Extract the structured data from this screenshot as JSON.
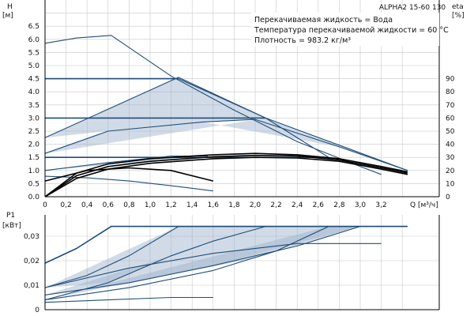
{
  "chart_data": [
    {
      "type": "line",
      "title": "ALPHA2 15-60 130",
      "ylabel": "H",
      "ylabel_unit": "[м]",
      "ylabel_right": "eta",
      "ylabel_right_unit": "[%]",
      "xlabel": "Q [м³/ч]",
      "xlim": [
        0,
        3.6
      ],
      "ylim": [
        0,
        7
      ],
      "ylim_right": [
        0,
        100
      ],
      "x_ticks": [
        "0",
        "0,2",
        "0,4",
        "0,6",
        "0,8",
        "1,0",
        "1,2",
        "1,4",
        "1,6",
        "1,8",
        "2,0",
        "2,2",
        "2,4",
        "2,6",
        "2,8",
        "3,0",
        "3,2"
      ],
      "y_ticks": [
        "0.0",
        "0.5",
        "1.0",
        "1.5",
        "2.0",
        "2.5",
        "3.0",
        "3.5",
        "4.0",
        "4.5",
        "5.0",
        "5.5",
        "6.0",
        "6.5"
      ],
      "y_right_ticks": [
        "0",
        "10",
        "20",
        "30",
        "40",
        "50",
        "60",
        "70",
        "80",
        "90"
      ],
      "grid": true,
      "info_lines": [
        "Перекачиваемая жидкость = Вода",
        "Температура перекачиваемой жидкости = 60 °C",
        "Плотность = 983.2 кг/м³"
      ],
      "series": [
        {
          "role": "max-curve",
          "x": [
            0,
            0.3,
            0.63,
            1.2,
            1.8,
            2.4,
            3.0,
            3.2
          ],
          "y": [
            5.85,
            6.05,
            6.15,
            4.6,
            3.3,
            2.1,
            1.15,
            0.85
          ]
        },
        {
          "role": "prop-pressure-3",
          "x": [
            0,
            1.27,
            2.1,
            3.45
          ],
          "y": [
            2.25,
            4.55,
            3.0,
            1.0
          ]
        },
        {
          "role": "prop-pressure-2",
          "x": [
            0,
            0.6,
            1.5,
            2.0,
            2.8,
            3.45
          ],
          "y": [
            1.65,
            2.5,
            2.85,
            2.95,
            1.9,
            1.0
          ]
        },
        {
          "role": "prop-pressure-1",
          "x": [
            0,
            0.6,
            1.2,
            1.55
          ],
          "y": [
            1.0,
            1.3,
            1.55,
            1.55
          ]
        },
        {
          "role": "const-pressure",
          "x": [
            0,
            0.63,
            1.27,
            2.1,
            2.7
          ],
          "y": [
            4.5,
            4.5,
            4.5,
            3.0,
            1.5
          ]
        },
        {
          "role": "min-curve",
          "x": [
            0,
            0.4,
            0.8,
            1.2,
            1.6
          ],
          "y": [
            0.78,
            0.72,
            0.6,
            0.42,
            0.22
          ]
        },
        {
          "role": "efficiency",
          "axis": "right",
          "x": [
            0,
            0.3,
            0.6,
            1.0,
            1.6,
            2.0,
            2.4,
            2.8,
            3.2,
            3.45
          ],
          "y": [
            0,
            18,
            25,
            29,
            32,
            33,
            32,
            29,
            23,
            19
          ]
        },
        {
          "role": "efficiency",
          "axis": "right",
          "x": [
            0,
            0.3,
            0.6,
            1.0,
            1.6,
            2.0,
            2.4,
            2.8,
            3.2,
            3.45
          ],
          "y": [
            0,
            16,
            23,
            27,
            30.5,
            31.5,
            31,
            28,
            22,
            18
          ]
        },
        {
          "role": "efficiency",
          "axis": "right",
          "x": [
            0,
            0.3,
            0.6,
            1.0,
            1.6,
            2.0,
            2.4,
            2.8,
            3.2,
            3.45
          ],
          "y": [
            0,
            14,
            21,
            25.5,
            29,
            30,
            29.5,
            27,
            21,
            17
          ]
        },
        {
          "role": "efficiency",
          "axis": "right",
          "x": [
            0,
            0.4,
            0.8,
            1.2,
            1.6
          ],
          "y": [
            12,
            20,
            22,
            20,
            12
          ]
        }
      ],
      "shaded_regions": [
        {
          "x": [
            0,
            1.27,
            2.1,
            1.5,
            0.6
          ],
          "y": [
            2.25,
            4.55,
            3.0,
            2.85,
            2.5
          ]
        },
        {
          "x": [
            0,
            2.1,
            2.9,
            3.45,
            2.8,
            1.5,
            0.6
          ],
          "y": [
            1.65,
            3.0,
            1.85,
            1.0,
            1.9,
            2.85,
            2.5
          ]
        },
        {
          "x": [
            0,
            1.55,
            1.2,
            0.6
          ],
          "y": [
            1.0,
            1.55,
            1.55,
            1.3
          ]
        }
      ]
    },
    {
      "type": "line",
      "ylabel": "P1",
      "ylabel_unit": "[кВт]",
      "xlim": [
        0,
        3.6
      ],
      "ylim": [
        0,
        0.036
      ],
      "y_ticks": [
        "0",
        "0,01",
        "0,02",
        "0,03"
      ],
      "grid": true,
      "series": [
        {
          "role": "power-max",
          "x": [
            0,
            0.3,
            0.63,
            3.45
          ],
          "y": [
            0.019,
            0.025,
            0.034,
            0.034
          ]
        },
        {
          "role": "power-prop-3",
          "x": [
            0,
            0.4,
            0.8,
            1.27,
            3.45
          ],
          "y": [
            0.009,
            0.014,
            0.022,
            0.034,
            0.034
          ]
        },
        {
          "role": "power-prop-2",
          "x": [
            0,
            0.8,
            1.6,
            2.4,
            3.0
          ],
          "y": [
            0.006,
            0.011,
            0.018,
            0.026,
            0.034
          ]
        },
        {
          "role": "power-prop-1",
          "x": [
            0,
            0.8,
            1.6,
            2.2,
            2.7
          ],
          "y": [
            0.004,
            0.009,
            0.016,
            0.024,
            0.034
          ]
        },
        {
          "role": "power-const",
          "x": [
            0,
            0.6,
            1.2,
            1.6,
            2.1
          ],
          "y": [
            0.004,
            0.011,
            0.022,
            0.028,
            0.034
          ]
        },
        {
          "role": "power-min",
          "x": [
            0,
            0.6,
            1.2,
            1.6
          ],
          "y": [
            0.003,
            0.004,
            0.005,
            0.005
          ]
        },
        {
          "role": "power-mid",
          "x": [
            0,
            0.8,
            1.6,
            2.4,
            3.2
          ],
          "y": [
            0.009,
            0.017,
            0.023,
            0.027,
            0.027
          ]
        }
      ],
      "shaded_regions": [
        {
          "x": [
            0,
            1.27,
            2.1,
            1.2,
            0.6
          ],
          "y": [
            0.009,
            0.034,
            0.034,
            0.022,
            0.011
          ]
        },
        {
          "x": [
            0,
            2.1,
            3.0,
            2.0,
            0.8
          ],
          "y": [
            0.006,
            0.034,
            0.034,
            0.021,
            0.011
          ]
        },
        {
          "x": [
            0,
            2.7,
            3.0,
            1.6,
            0.8
          ],
          "y": [
            0.004,
            0.034,
            0.034,
            0.018,
            0.011
          ]
        }
      ]
    }
  ]
}
